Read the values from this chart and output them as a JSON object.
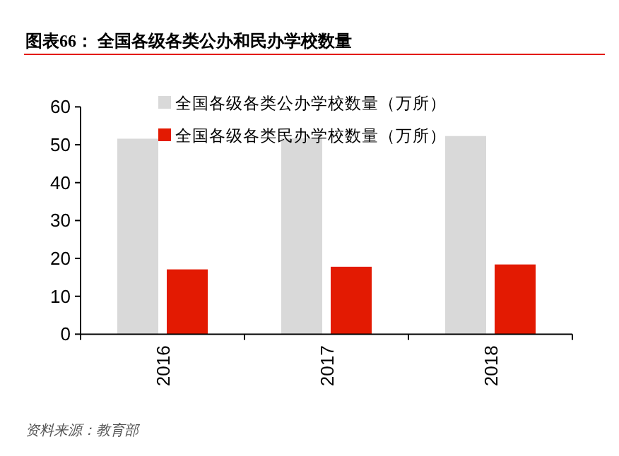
{
  "chart_data": {
    "type": "bar",
    "title": "图表66：  全国各级各类公办和民办学校数量",
    "categories": [
      "2016",
      "2017",
      "2018"
    ],
    "series": [
      {
        "name": "全国各级各类公办学校数量（万所）",
        "color": "#d9d9d9",
        "values": [
          51.6,
          51.7,
          52.3
        ]
      },
      {
        "name": "全国各级各类民办学校数量（万所）",
        "color": "#e31a02",
        "values": [
          17.1,
          17.8,
          18.4
        ]
      }
    ],
    "ylim": [
      0,
      60
    ],
    "yticks": [
      0,
      10,
      20,
      30,
      40,
      50,
      60
    ],
    "grid": false,
    "legend": "top",
    "annotations": [
      "资料来源：教育部"
    ]
  }
}
